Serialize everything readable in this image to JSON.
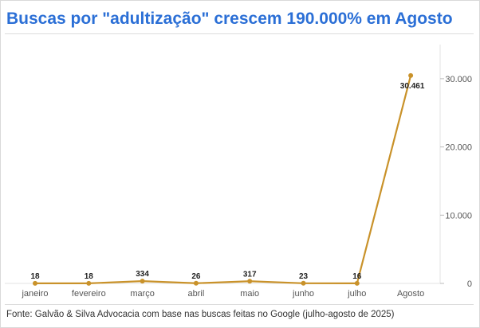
{
  "header": {
    "title": "Buscas por \"adultização\" crescem 190.000% em Agosto"
  },
  "footer": {
    "source": "Fonte: Galvão & Silva Advocacia com base nas buscas feitas no Google (julho-agosto de 2025)"
  },
  "colors": {
    "title": "#2b6fd6",
    "line": "#c9922a",
    "grid": "#e3e3e3",
    "axis_text": "#555555",
    "label_text": "#222222"
  },
  "chart_data": {
    "type": "line",
    "title": "Buscas por \"adultização\" crescem 190.000% em Agosto",
    "xlabel": "",
    "ylabel": "",
    "categories": [
      "janeiro",
      "fevereiro",
      "março",
      "abril",
      "maio",
      "junho",
      "julho",
      "Agosto"
    ],
    "series": [
      {
        "values": [
          18,
          18,
          334,
          26,
          317,
          23,
          16,
          30461
        ],
        "data_labels": [
          "18",
          "18",
          "334",
          "26",
          "317",
          "23",
          "16",
          "30.461"
        ]
      }
    ],
    "y_ticks": [
      0,
      10000,
      20000,
      30000
    ],
    "y_tick_labels": [
      "0",
      "10.000",
      "20.000",
      "30.000"
    ],
    "ylim": [
      0,
      35000
    ],
    "y_axis_side": "right",
    "grid": false
  }
}
